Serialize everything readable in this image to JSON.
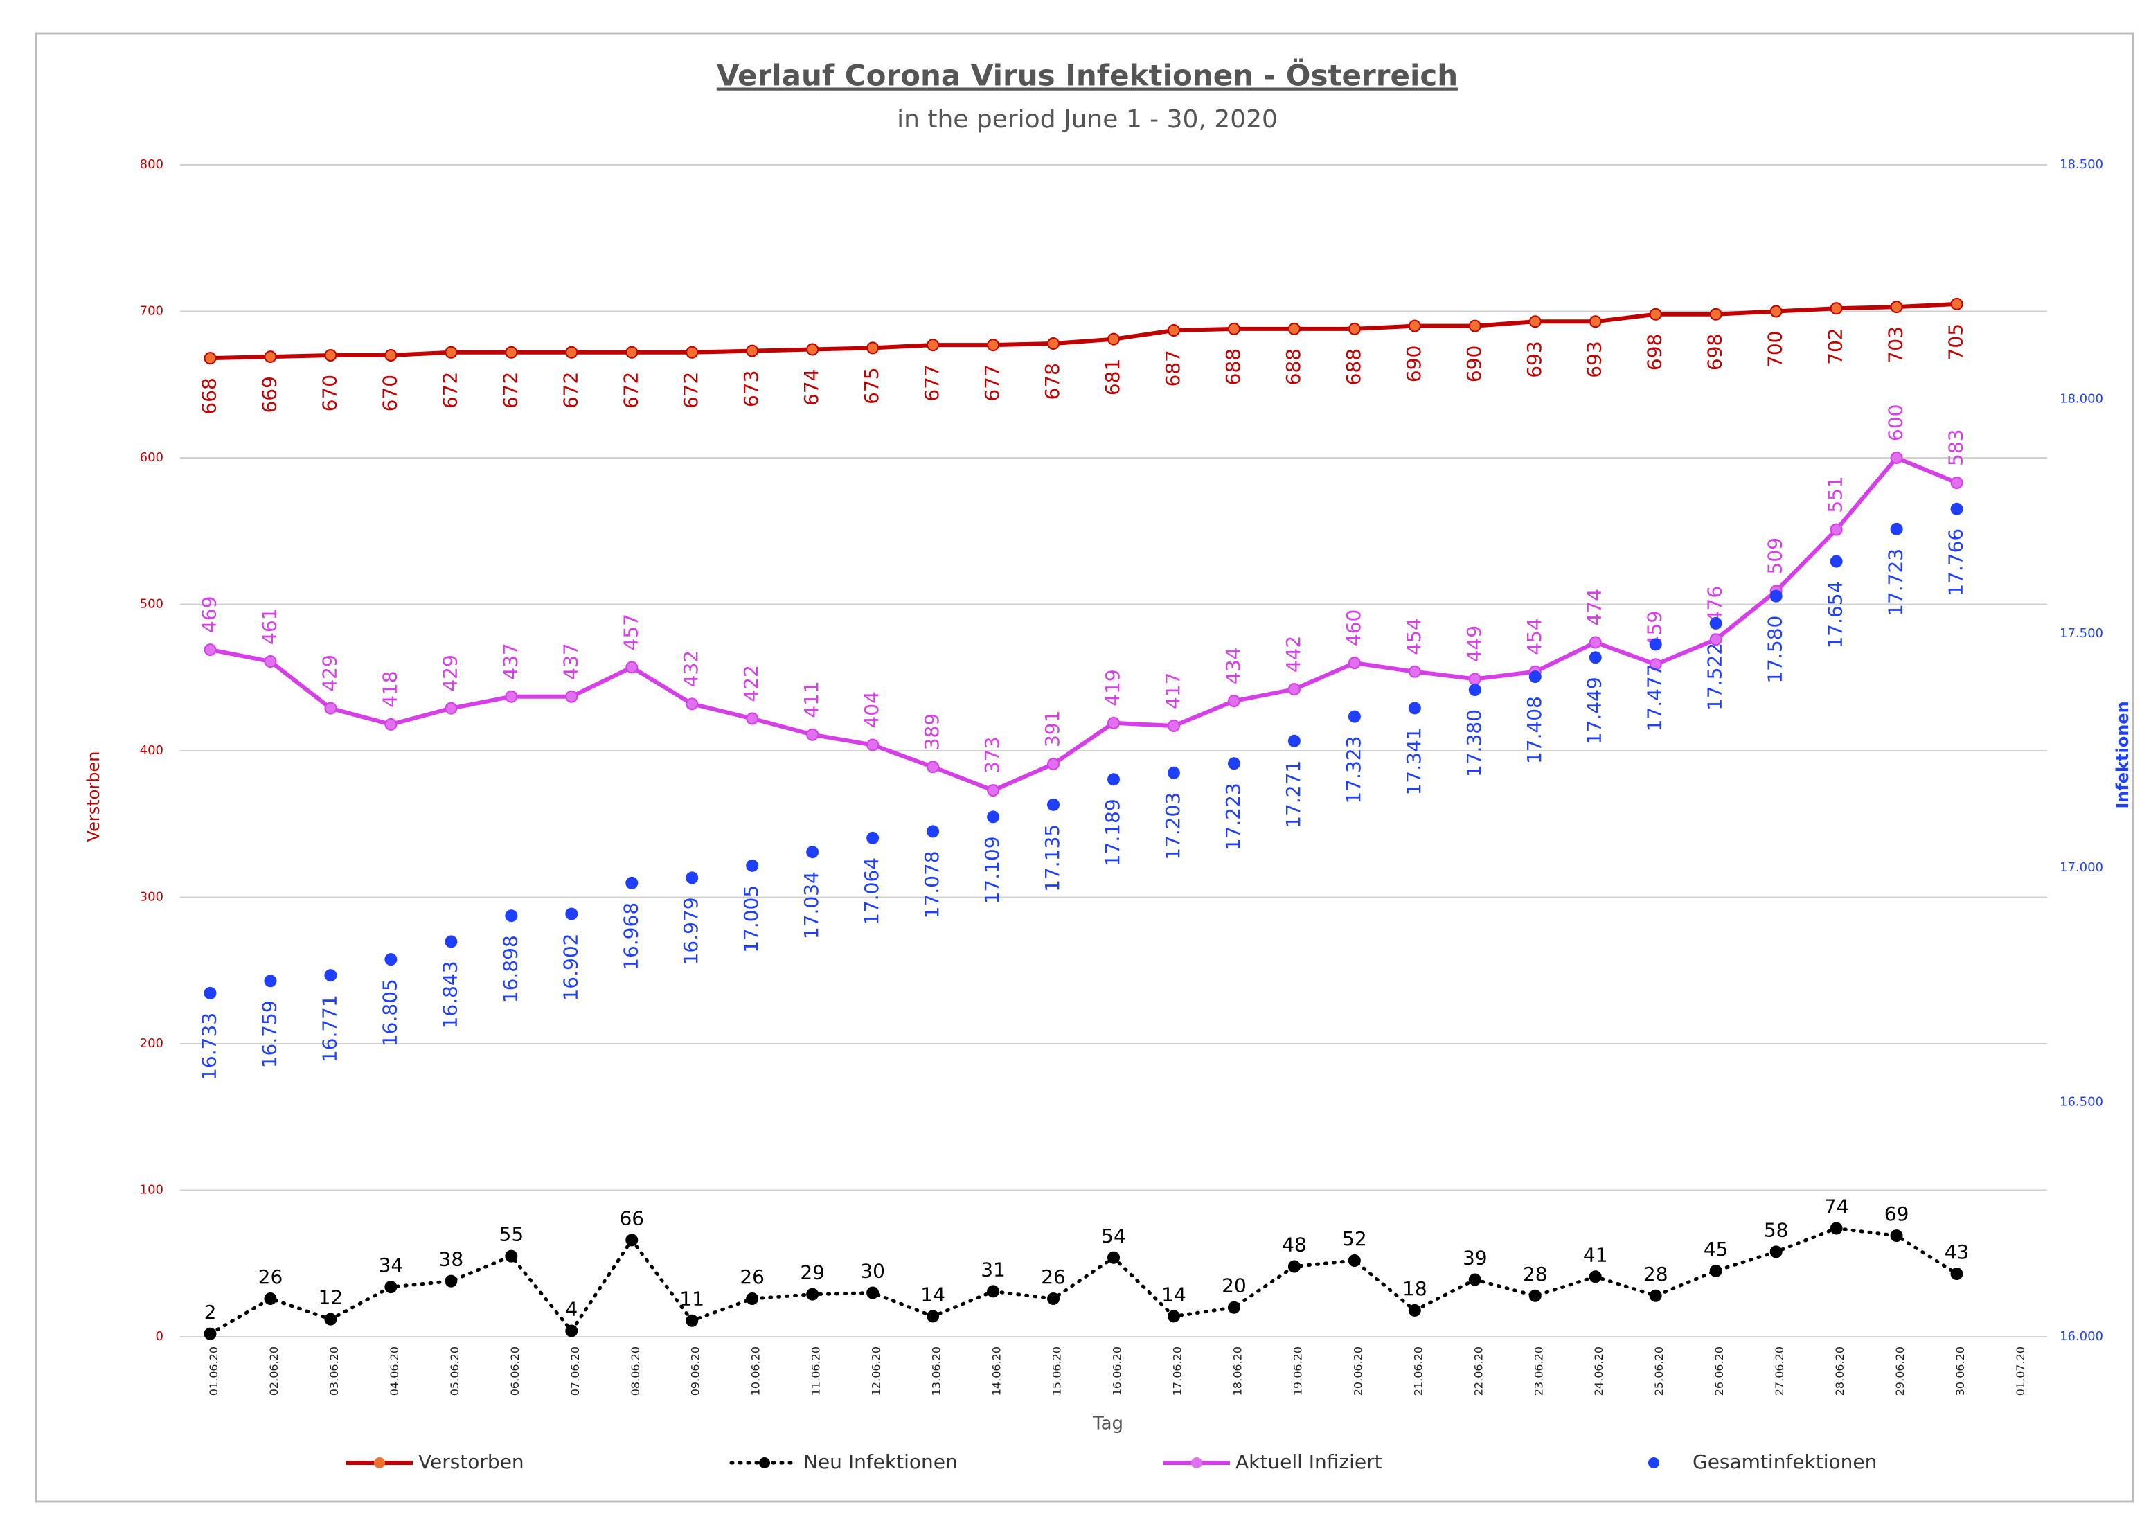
{
  "chart_data": {
    "type": "line",
    "title": "Verlauf Corona Virus Infektionen - Österreich",
    "subtitle": "in the period June 1 - 30, 2020",
    "ylabel": "Verstorben",
    "y2label": "Infektionen",
    "xlabel": "Tag",
    "categories": [
      "01.06.20",
      "02.06.20",
      "03.06.20",
      "04.06.20",
      "05.06.20",
      "06.06.20",
      "07.06.20",
      "08.06.20",
      "09.06.20",
      "10.06.20",
      "11.06.20",
      "12.06.20",
      "13.06.20",
      "14.06.20",
      "15.06.20",
      "16.06.20",
      "17.06.20",
      "18.06.20",
      "19.06.20",
      "20.06.20",
      "21.06.20",
      "22.06.20",
      "23.06.20",
      "24.06.20",
      "25.06.20",
      "26.06.20",
      "27.06.20",
      "28.06.20",
      "29.06.20",
      "30.06.20",
      "01.07.20"
    ],
    "ylim": [
      0,
      800
    ],
    "yticks": [
      0,
      100,
      200,
      300,
      400,
      500,
      600,
      700,
      800
    ],
    "y2lim": [
      16000,
      18500
    ],
    "y2ticks": [
      {
        "value": 16000,
        "label": "16.000"
      },
      {
        "value": 16500,
        "label": "16.500"
      },
      {
        "value": 17000,
        "label": "17.000"
      },
      {
        "value": 17500,
        "label": "17.500"
      },
      {
        "value": 18000,
        "label": "18.000"
      },
      {
        "value": 18500,
        "label": "18.500"
      }
    ],
    "grid": true,
    "legend": "bottom",
    "series": [
      {
        "name": "Verstorben",
        "color": "#c00000",
        "line": "solid",
        "marker_color": "#f07030",
        "label_side": "below",
        "values": [
          668,
          669,
          670,
          670,
          672,
          672,
          672,
          672,
          672,
          673,
          674,
          675,
          677,
          677,
          678,
          681,
          687,
          688,
          688,
          688,
          690,
          690,
          693,
          693,
          698,
          698,
          700,
          702,
          703,
          705,
          null
        ]
      },
      {
        "name": "Neu Infektionen",
        "color": "#000000",
        "line": "dotted",
        "marker_color": "#000000",
        "label_side": "above-flat",
        "values": [
          2,
          26,
          12,
          34,
          38,
          55,
          4,
          66,
          11,
          26,
          29,
          30,
          14,
          31,
          26,
          54,
          14,
          20,
          48,
          52,
          18,
          39,
          28,
          41,
          28,
          45,
          58,
          74,
          69,
          43,
          null
        ]
      },
      {
        "name": "Aktuell Infiziert",
        "color": "#d63fe8",
        "line": "solid",
        "marker_color": "#e070f0",
        "label_side": "above",
        "values": [
          469,
          461,
          429,
          418,
          429,
          437,
          437,
          457,
          432,
          422,
          411,
          404,
          389,
          373,
          391,
          419,
          417,
          434,
          442,
          460,
          454,
          449,
          454,
          474,
          459,
          476,
          509,
          551,
          600,
          583,
          null
        ]
      },
      {
        "name": "Gesamtinfektionen",
        "color": "#1f3fff",
        "line": "none",
        "marker_color": "#1f3fff",
        "label_side": "below",
        "axis": "y2",
        "values": [
          16733,
          16759,
          16771,
          16805,
          16843,
          16898,
          16902,
          16968,
          16979,
          17005,
          17034,
          17064,
          17078,
          17109,
          17135,
          17189,
          17203,
          17223,
          17271,
          17323,
          17341,
          17380,
          17408,
          17449,
          17477,
          17522,
          17580,
          17654,
          17723,
          17766,
          null
        ],
        "value_labels": [
          "16.733",
          "16.759",
          "16.771",
          "16.805",
          "16.843",
          "16.898",
          "16.902",
          "16.968",
          "16.979",
          "17.005",
          "17.034",
          "17.064",
          "17.078",
          "17.109",
          "17.135",
          "17.189",
          "17.203",
          "17.223",
          "17.271",
          "17.323",
          "17.341",
          "17.380",
          "17.408",
          "17.449",
          "17.477",
          "17.522",
          "17.580",
          "17.654",
          "17.723",
          "17.766",
          null
        ]
      }
    ]
  }
}
